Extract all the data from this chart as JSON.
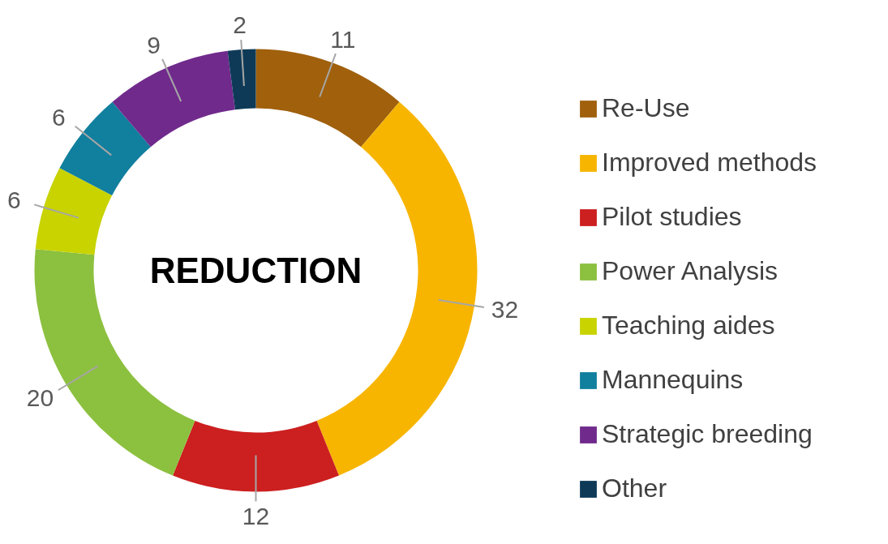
{
  "chart_data": {
    "type": "donut",
    "title": "REDUCTION",
    "categories": [
      "Re-Use",
      "Improved methods",
      "Pilot studies",
      "Power Analysis",
      "Teaching aides",
      "Mannequins",
      "Strategic breeding",
      "Other"
    ],
    "values": [
      11,
      32,
      12,
      20,
      6,
      6,
      9,
      2
    ],
    "colors": [
      "#a0600c",
      "#f7b500",
      "#cc1f1f",
      "#8cc03f",
      "#c8d300",
      "#117f9e",
      "#702a8c",
      "#0e3a58"
    ],
    "data_labels": true,
    "legend": "right"
  }
}
